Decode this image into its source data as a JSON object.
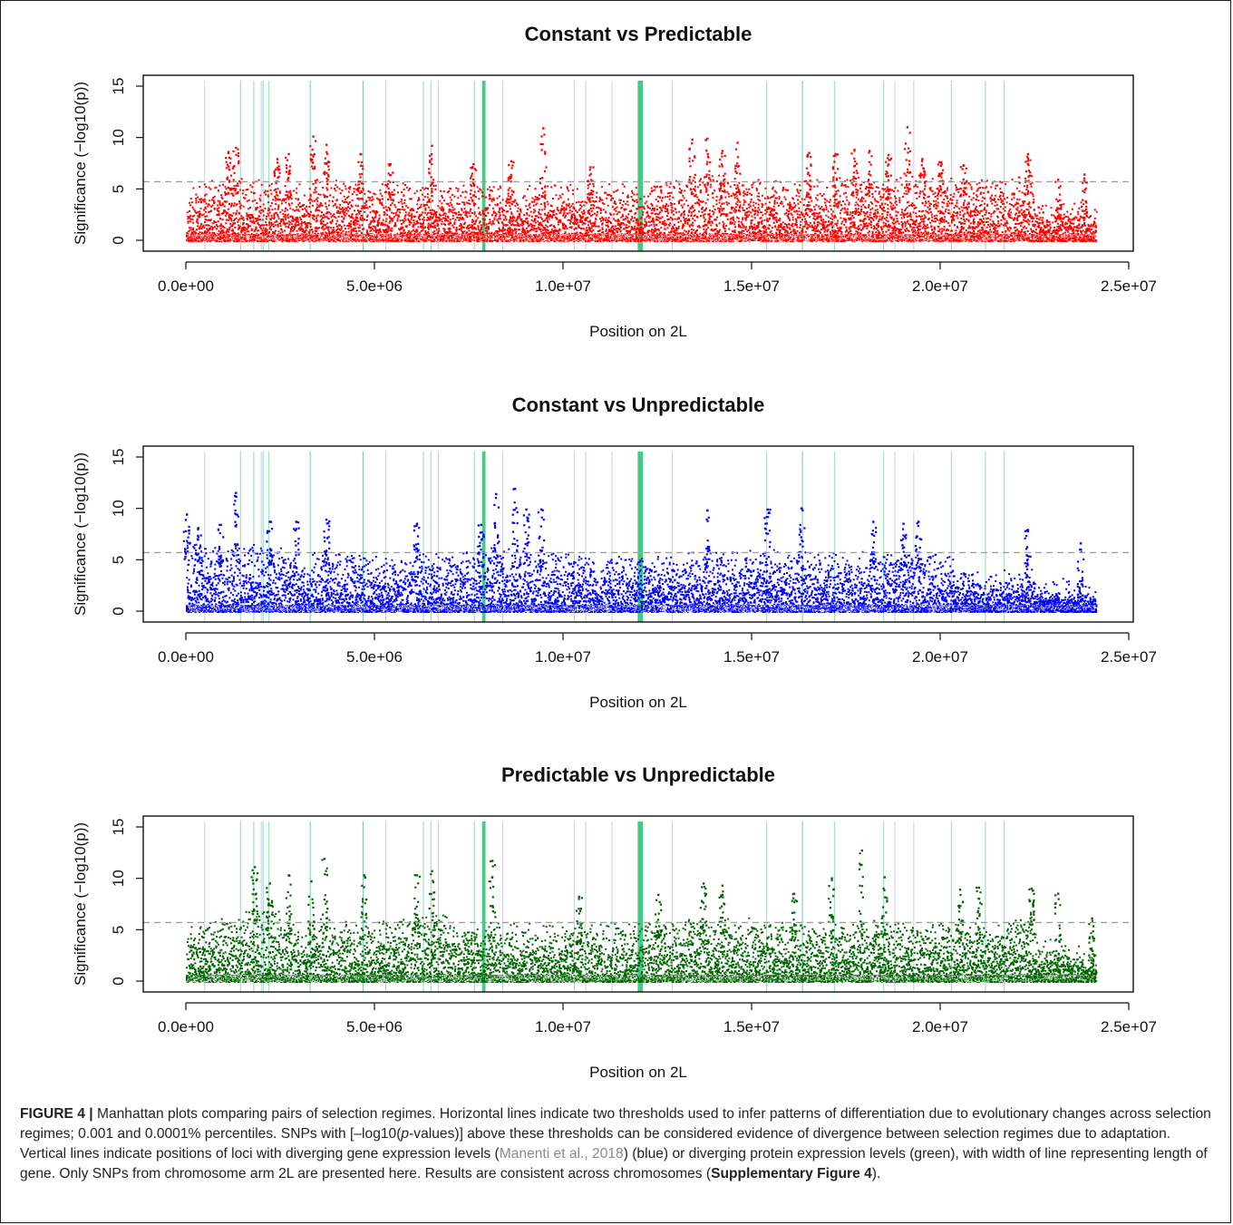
{
  "figure": {
    "caption": {
      "label": "FIGURE 4 |",
      "text_1": " Manhattan plots comparing pairs of selection regimes. Horizontal lines indicate two thresholds used to infer patterns of differentiation due to evolutionary changes across selection regimes; 0.001 and 0.0001% percentiles. SNPs with [–log10(",
      "p": "p",
      "text_2": "-values)] above these thresholds can be considered evidence of divergence between selection regimes due to adaptation. Vertical lines indicate positions of loci with diverging gene expression levels (",
      "citation": "Manenti et al., 2018",
      "text_3": ") (blue) or diverging protein expression levels (green), with width of line representing length of gene. Only SNPs from chromosome arm 2L are presented here. Results are consistent across chromosomes (",
      "supp_ref": "Supplementary Figure 4",
      "text_4": ")."
    }
  },
  "chart_data": [
    {
      "type": "scatter",
      "title": "Constant vs Predictable",
      "xlabel": "Position on 2L",
      "ylabel": "Significance (−log10(p))",
      "xlim": [
        0,
        25000000
      ],
      "ylim": [
        0,
        15
      ],
      "xticks": [
        0,
        5000000,
        10000000,
        15000000,
        20000000,
        25000000
      ],
      "xtick_labels": [
        "0.0e+00",
        "5.0e+06",
        "1.0e+07",
        "1.5e+07",
        "2.0e+07",
        "2.5e+07"
      ],
      "yticks": [
        0,
        5,
        10,
        15
      ],
      "ytick_labels": [
        "0",
        "5",
        "10",
        "15"
      ],
      "point_color": "#ff0000",
      "grid": false,
      "threshold_lines": [
        5.7
      ],
      "base_profile": [
        [
          0,
          3.2
        ],
        [
          500000,
          4.0
        ],
        [
          1000000,
          4.5
        ],
        [
          2000000,
          4.2
        ],
        [
          3000000,
          3.8
        ],
        [
          3100000,
          2.6
        ],
        [
          3300000,
          4.4
        ],
        [
          5000000,
          4.0
        ],
        [
          7000000,
          3.6
        ],
        [
          9000000,
          3.6
        ],
        [
          12000000,
          3.8
        ],
        [
          14000000,
          4.8
        ],
        [
          16000000,
          4.0
        ],
        [
          17500000,
          4.4
        ],
        [
          19000000,
          4.6
        ],
        [
          21000000,
          4.2
        ],
        [
          22400000,
          4.6
        ],
        [
          22500000,
          2.2
        ],
        [
          24100000,
          2.0
        ]
      ],
      "peaks": [
        [
          1100000,
          8.7
        ],
        [
          1300000,
          9.1
        ],
        [
          2400000,
          8.0
        ],
        [
          2700000,
          8.5
        ],
        [
          3350000,
          10.2
        ],
        [
          3700000,
          9.4
        ],
        [
          4600000,
          8.5
        ],
        [
          5400000,
          7.5
        ],
        [
          6500000,
          9.3
        ],
        [
          7600000,
          7.5
        ],
        [
          8600000,
          7.8
        ],
        [
          9450000,
          11.0
        ],
        [
          10700000,
          7.2
        ],
        [
          13400000,
          9.9
        ],
        [
          13800000,
          10.0
        ],
        [
          14200000,
          8.8
        ],
        [
          14600000,
          9.6
        ],
        [
          16500000,
          8.6
        ],
        [
          17200000,
          8.5
        ],
        [
          17700000,
          8.9
        ],
        [
          18100000,
          8.8
        ],
        [
          18600000,
          8.4
        ],
        [
          19100000,
          11.1
        ],
        [
          19500000,
          8.0
        ],
        [
          20000000,
          7.7
        ],
        [
          20600000,
          7.4
        ],
        [
          22300000,
          8.5
        ],
        [
          23100000,
          6.0
        ],
        [
          23800000,
          6.5
        ]
      ]
    },
    {
      "type": "scatter",
      "title": "Constant vs Unpredictable",
      "xlabel": "Position on 2L",
      "ylabel": "Significance (−log10(p))",
      "xlim": [
        0,
        25000000
      ],
      "ylim": [
        0,
        15
      ],
      "xticks": [
        0,
        5000000,
        10000000,
        15000000,
        20000000,
        25000000
      ],
      "xtick_labels": [
        "0.0e+00",
        "5.0e+06",
        "1.0e+07",
        "1.5e+07",
        "2.0e+07",
        "2.5e+07"
      ],
      "yticks": [
        0,
        5,
        10,
        15
      ],
      "ytick_labels": [
        "0",
        "5",
        "10",
        "15"
      ],
      "point_color": "#0000ff",
      "grid": false,
      "threshold_lines": [
        5.7
      ],
      "base_profile": [
        [
          0,
          5.0
        ],
        [
          600000,
          4.6
        ],
        [
          1300000,
          5.0
        ],
        [
          2500000,
          4.4
        ],
        [
          3100000,
          3.0
        ],
        [
          3400000,
          4.2
        ],
        [
          5000000,
          3.6
        ],
        [
          7000000,
          4.0
        ],
        [
          8000000,
          4.6
        ],
        [
          9000000,
          4.2
        ],
        [
          11000000,
          3.6
        ],
        [
          13500000,
          4.0
        ],
        [
          15000000,
          4.4
        ],
        [
          17000000,
          3.9
        ],
        [
          18500000,
          4.2
        ],
        [
          20300000,
          3.8
        ],
        [
          20500000,
          2.6
        ],
        [
          22000000,
          2.2
        ],
        [
          22400000,
          3.2
        ],
        [
          22500000,
          1.6
        ],
        [
          24100000,
          1.4
        ]
      ],
      "peaks": [
        [
          0,
          9.5
        ],
        [
          300000,
          8.2
        ],
        [
          900000,
          8.5
        ],
        [
          1300000,
          11.6
        ],
        [
          2200000,
          8.8
        ],
        [
          2900000,
          8.8
        ],
        [
          3700000,
          9.0
        ],
        [
          6100000,
          8.6
        ],
        [
          7800000,
          8.5
        ],
        [
          8200000,
          11.5
        ],
        [
          8700000,
          12.0
        ],
        [
          9000000,
          10.0
        ],
        [
          9400000,
          10.0
        ],
        [
          13800000,
          9.9
        ],
        [
          15400000,
          10.0
        ],
        [
          16300000,
          10.1
        ],
        [
          18200000,
          8.8
        ],
        [
          19000000,
          8.6
        ],
        [
          19400000,
          8.8
        ],
        [
          22300000,
          8.0
        ],
        [
          23700000,
          6.7
        ]
      ]
    },
    {
      "type": "scatter",
      "title": "Predictable vs Unpredictable",
      "xlabel": "Position on 2L",
      "ylabel": "Significance (−log10(p))",
      "xlim": [
        0,
        25000000
      ],
      "ylim": [
        0,
        15
      ],
      "xticks": [
        0,
        5000000,
        10000000,
        15000000,
        20000000,
        25000000
      ],
      "xtick_labels": [
        "0.0e+00",
        "5.0e+06",
        "1.0e+07",
        "1.5e+07",
        "2.0e+07",
        "2.5e+07"
      ],
      "yticks": [
        0,
        5,
        10,
        15
      ],
      "ytick_labels": [
        "0",
        "5",
        "10",
        "15"
      ],
      "point_color": "#006400",
      "grid": false,
      "threshold_lines": [
        5.7
      ],
      "base_profile": [
        [
          0,
          3.4
        ],
        [
          800000,
          4.6
        ],
        [
          1800000,
          5.4
        ],
        [
          2600000,
          5.0
        ],
        [
          3100000,
          2.8
        ],
        [
          3400000,
          4.4
        ],
        [
          5000000,
          4.0
        ],
        [
          6500000,
          5.0
        ],
        [
          7500000,
          4.0
        ],
        [
          10000000,
          3.8
        ],
        [
          13000000,
          4.2
        ],
        [
          14500000,
          4.8
        ],
        [
          16000000,
          4.0
        ],
        [
          18000000,
          4.2
        ],
        [
          20500000,
          3.8
        ],
        [
          22000000,
          4.4
        ],
        [
          22450000,
          5.6
        ],
        [
          22550000,
          2.4
        ],
        [
          24100000,
          2.0
        ]
      ],
      "peaks": [
        [
          1800000,
          11.2
        ],
        [
          2200000,
          9.6
        ],
        [
          2700000,
          10.4
        ],
        [
          3300000,
          9.8
        ],
        [
          3650000,
          12.0
        ],
        [
          4700000,
          10.4
        ],
        [
          6100000,
          10.4
        ],
        [
          6500000,
          10.8
        ],
        [
          8100000,
          11.8
        ],
        [
          10400000,
          8.3
        ],
        [
          12500000,
          8.5
        ],
        [
          13700000,
          9.6
        ],
        [
          14200000,
          9.4
        ],
        [
          16100000,
          8.6
        ],
        [
          17100000,
          10.1
        ],
        [
          17900000,
          12.8
        ],
        [
          18500000,
          10.2
        ],
        [
          20500000,
          9.0
        ],
        [
          21000000,
          9.2
        ],
        [
          22400000,
          9.1
        ],
        [
          23100000,
          8.6
        ],
        [
          24000000,
          6.2
        ]
      ]
    }
  ],
  "expression_loci": {
    "gene_expression_color": "#9aa0d8",
    "protein_expression_color": "#33c27a",
    "gene_expression": [
      [
        500000,
        20000
      ],
      [
        2000000,
        20000
      ],
      [
        4700000,
        20000
      ],
      [
        5300000,
        20000
      ],
      [
        6700000,
        20000
      ],
      [
        8400000,
        20000
      ],
      [
        10300000,
        20000
      ],
      [
        10600000,
        20000
      ],
      [
        11300000,
        20000
      ],
      [
        12900000,
        20000
      ],
      [
        18800000,
        20000
      ],
      [
        19300000,
        20000
      ]
    ],
    "protein_expression": [
      [
        1450000,
        30000
      ],
      [
        1800000,
        30000
      ],
      [
        2050000,
        30000
      ],
      [
        2200000,
        30000
      ],
      [
        3300000,
        40000
      ],
      [
        4700000,
        30000
      ],
      [
        6300000,
        30000
      ],
      [
        6500000,
        30000
      ],
      [
        7650000,
        30000
      ],
      [
        7900000,
        90000
      ],
      [
        12050000,
        140000
      ],
      [
        15400000,
        30000
      ],
      [
        16350000,
        40000
      ],
      [
        17200000,
        30000
      ],
      [
        18500000,
        30000
      ],
      [
        20300000,
        30000
      ],
      [
        21200000,
        30000
      ],
      [
        21700000,
        30000
      ]
    ]
  }
}
